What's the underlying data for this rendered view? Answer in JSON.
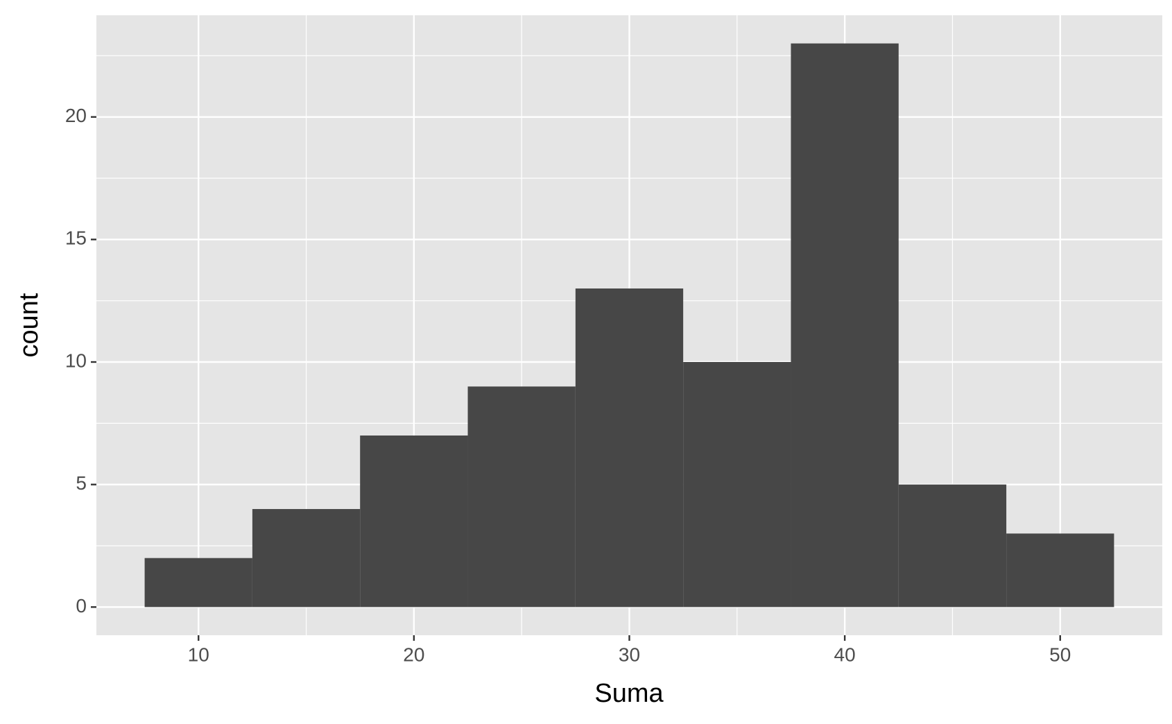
{
  "chart_data": {
    "type": "histogram",
    "xlabel": "Suma",
    "ylabel": "count",
    "bins": [
      7.5,
      12.5,
      17.5,
      22.5,
      27.5,
      32.5,
      37.5,
      42.5,
      47.5,
      52.5
    ],
    "values": [
      2,
      4,
      7,
      9,
      13,
      10,
      23,
      5,
      3
    ],
    "color": "#474747",
    "xlim": [
      5.26,
      54.74
    ],
    "xticks": [
      10,
      20,
      30,
      40,
      50
    ],
    "ylim": [
      -1.15,
      24.15
    ],
    "yticks": [
      0,
      5,
      10,
      15,
      20
    ],
    "grid": true
  }
}
